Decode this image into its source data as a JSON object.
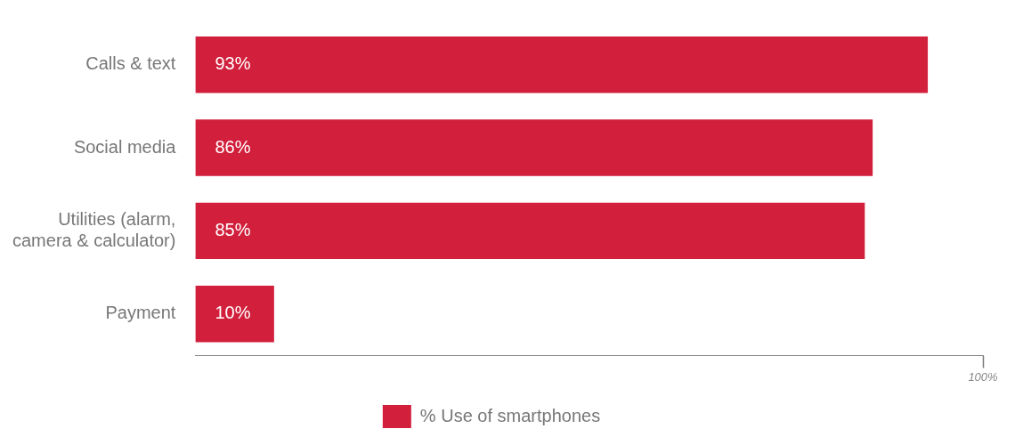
{
  "chart_data": {
    "type": "bar",
    "orientation": "horizontal",
    "categories": [
      "Calls & text",
      "Social media",
      "Utilities (alarm, camera & calculator)",
      "Payment"
    ],
    "series": [
      {
        "name": "% Use of smartphones",
        "color": "#d11f3c",
        "values": [
          93,
          86,
          85,
          10
        ],
        "value_labels": [
          "93%",
          "86%",
          "85%",
          "10%"
        ]
      }
    ],
    "xlim": [
      0,
      100
    ],
    "xticks": [
      {
        "value": 100,
        "label": "100%"
      }
    ],
    "grid": false,
    "legend": "bottom"
  }
}
